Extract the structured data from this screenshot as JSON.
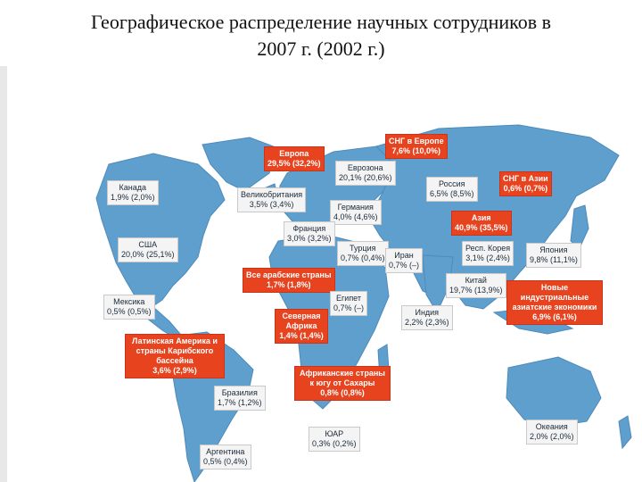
{
  "title": {
    "line1": "Географическое распределение научных сотрудников в",
    "line2": "2007 г. (2002 г.)"
  },
  "colors": {
    "ocean": "#ffffff",
    "land": "#5f9fce",
    "highlight": "#e8431f",
    "label_bg": "#f4f4f4"
  },
  "regions": [
    {
      "id": "canada",
      "name": "Канада",
      "value": "1,9% (2,0%)",
      "style": "plain"
    },
    {
      "id": "usa",
      "name": "США",
      "value": "20,0% (25,1%)",
      "style": "plain"
    },
    {
      "id": "mexico",
      "name": "Мексика",
      "value": "0,5% (0,5%)",
      "style": "plain"
    },
    {
      "id": "latam",
      "name": "Латинская Америка и страны Карибского бассейна",
      "value": "3,6% (2,9%)",
      "style": "highlight"
    },
    {
      "id": "brazil",
      "name": "Бразилия",
      "value": "1,7% (1,2%)",
      "style": "plain"
    },
    {
      "id": "argentina",
      "name": "Аргентина",
      "value": "0,5% (0,4%)",
      "style": "plain"
    },
    {
      "id": "europe",
      "name": "Европа",
      "value": "29,5% (32,2%)",
      "style": "highlight"
    },
    {
      "id": "eurozone",
      "name": "Еврозона",
      "value": "20,1% (20,6%)",
      "style": "plain"
    },
    {
      "id": "uk",
      "name": "Великобритания",
      "value": "3,5% (3,4%)",
      "style": "plain"
    },
    {
      "id": "germany",
      "name": "Германия",
      "value": "4,0% (4,6%)",
      "style": "plain"
    },
    {
      "id": "france",
      "name": "Франция",
      "value": "3,0% (3,2%)",
      "style": "plain"
    },
    {
      "id": "turkey",
      "name": "Турция",
      "value": "0,7% (0,4%)",
      "style": "plain"
    },
    {
      "id": "iran",
      "name": "Иран",
      "value": "0,7% (–)",
      "style": "plain"
    },
    {
      "id": "arab",
      "name": "Все арабские страны",
      "value": "1,7% (1,8%)",
      "style": "highlight"
    },
    {
      "id": "egypt",
      "name": "Египет",
      "value": "0,7% (–)",
      "style": "plain"
    },
    {
      "id": "north_africa",
      "name": "Северная Африка",
      "value": "1,4% (1,4%)",
      "style": "highlight"
    },
    {
      "id": "ssa",
      "name": "Африканские страны к югу от Сахары",
      "value": "0,8% (0,8%)",
      "style": "highlight"
    },
    {
      "id": "sa",
      "name": "ЮАР",
      "value": "0,3% (0,2%)",
      "style": "plain"
    },
    {
      "id": "cis_europe",
      "name": "СНГ в Европе",
      "value": "7,6% (10,0%)",
      "style": "highlight"
    },
    {
      "id": "russia",
      "name": "Россия",
      "value": "6,5% (8,5%)",
      "style": "plain"
    },
    {
      "id": "cis_asia",
      "name": "СНГ в Азии",
      "value": "0,6% (0,7%)",
      "style": "highlight"
    },
    {
      "id": "asia",
      "name": "Азия",
      "value": "40,9% (35,5%)",
      "style": "highlight"
    },
    {
      "id": "korea",
      "name": "Респ. Корея",
      "value": "3,1% (2,4%)",
      "style": "plain"
    },
    {
      "id": "japan",
      "name": "Япония",
      "value": "9,8% (11,1%)",
      "style": "plain"
    },
    {
      "id": "china",
      "name": "Китай",
      "value": "19,7% (13,9%)",
      "style": "plain"
    },
    {
      "id": "nie",
      "name": "Новые индустриальные азиатские экономики",
      "value": "6,9% (6,1%)",
      "style": "highlight"
    },
    {
      "id": "india",
      "name": "Индия",
      "value": "2,2% (2,3%)",
      "style": "plain"
    },
    {
      "id": "oceania",
      "name": "Океания",
      "value": "2,0% (2,0%)",
      "style": "plain"
    }
  ]
}
